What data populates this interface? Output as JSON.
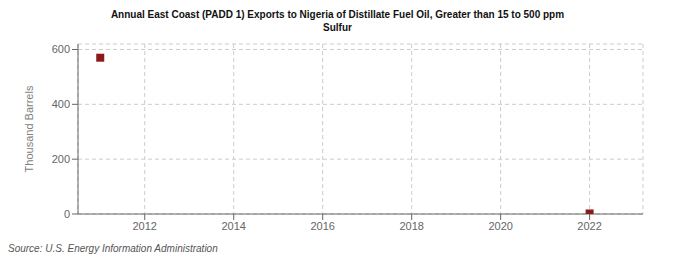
{
  "chart_data": {
    "type": "scatter",
    "title": "Annual East Coast (PADD 1) Exports to Nigeria of Distillate Fuel Oil, Greater than 15 to 500 ppm\nSulfur",
    "ylabel": "Thousand Barrels",
    "annotations": [
      "Source: U.S. Energy Information Administration"
    ],
    "x": [
      2011,
      2022
    ],
    "values": [
      570,
      2
    ],
    "color": "#8b1a1a",
    "marker": "square",
    "xlim": [
      2010.5,
      2023.2
    ],
    "ylim": [
      0,
      620
    ],
    "xticks": [
      2012,
      2014,
      2016,
      2018,
      2020,
      2022
    ],
    "yticks": [
      0,
      200,
      400,
      600
    ],
    "grid": true
  }
}
